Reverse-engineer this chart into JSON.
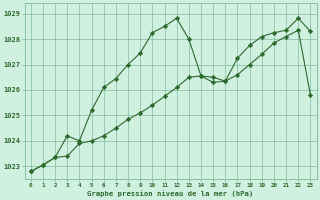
{
  "title": "Graphe pression niveau de la mer (hPa)",
  "bg_color": "#d0f0e0",
  "grid_color": "#7ab89a",
  "line_color": "#2d6a2d",
  "marker_color": "#2d6a2d",
  "xlim": [
    -0.5,
    23.5
  ],
  "ylim": [
    1022.5,
    1029.4
  ],
  "yticks": [
    1023,
    1024,
    1025,
    1026,
    1027,
    1028,
    1029
  ],
  "xticks": [
    0,
    1,
    2,
    3,
    4,
    5,
    6,
    7,
    8,
    9,
    10,
    11,
    12,
    13,
    14,
    15,
    16,
    17,
    18,
    19,
    20,
    21,
    22,
    23
  ],
  "series1_x": [
    0,
    1,
    2,
    3,
    4,
    5,
    6,
    7,
    8,
    9,
    10,
    11,
    12,
    13,
    14,
    15,
    16,
    17,
    18,
    19,
    20,
    21,
    22,
    23
  ],
  "series1_y": [
    1022.8,
    1023.05,
    1023.35,
    1024.2,
    1024.0,
    1025.2,
    1026.1,
    1026.45,
    1027.0,
    1027.45,
    1028.25,
    1028.5,
    1028.82,
    1028.0,
    1026.55,
    1026.5,
    1026.35,
    1027.25,
    1027.75,
    1028.1,
    1028.25,
    1028.35,
    1028.82,
    1028.3
  ],
  "series2_x": [
    0,
    1,
    2,
    3,
    4,
    5,
    6,
    7,
    8,
    9,
    10,
    11,
    12,
    13,
    14,
    15,
    16,
    17,
    18,
    19,
    20,
    21,
    22,
    23
  ],
  "series2_y": [
    1022.8,
    1023.05,
    1023.35,
    1023.4,
    1023.9,
    1024.0,
    1024.2,
    1024.5,
    1024.85,
    1025.1,
    1025.4,
    1025.75,
    1026.1,
    1026.5,
    1026.55,
    1026.3,
    1026.35,
    1026.6,
    1027.0,
    1027.4,
    1027.85,
    1028.1,
    1028.35,
    1025.8
  ]
}
